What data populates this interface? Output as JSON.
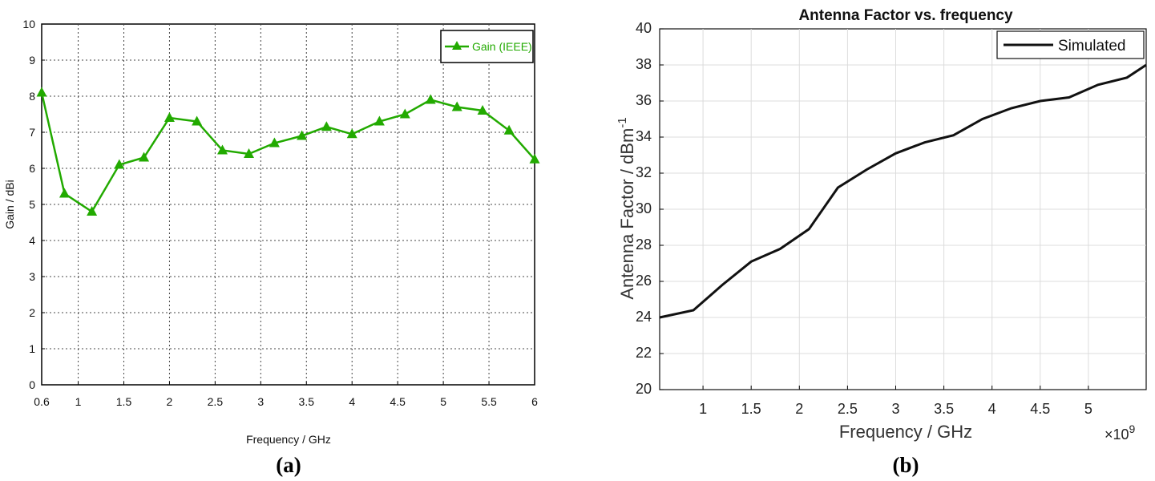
{
  "chart_data": [
    {
      "type": "line",
      "panel_label": "(a)",
      "title": "",
      "xlabel": "Frequency / GHz",
      "ylabel": "Gain / dBi",
      "xlim": [
        0.6,
        6
      ],
      "ylim": [
        0,
        10
      ],
      "xticks": [
        "0.6",
        "1",
        "1.5",
        "2",
        "2.5",
        "3",
        "3.5",
        "4",
        "4.5",
        "5",
        "5.5",
        "6"
      ],
      "xtick_values": [
        0.6,
        1,
        1.5,
        2,
        2.5,
        3,
        3.5,
        4,
        4.5,
        5,
        5.5,
        6
      ],
      "yticks": [
        "0",
        "1",
        "2",
        "3",
        "4",
        "5",
        "6",
        "7",
        "8",
        "9",
        "10"
      ],
      "ytick_values": [
        0,
        1,
        2,
        3,
        4,
        5,
        6,
        7,
        8,
        9,
        10
      ],
      "grid": true,
      "legend_position": "top-right",
      "color": "#22aa00",
      "series": [
        {
          "name": "Gain (IEEE)",
          "marker": "triangle",
          "x": [
            0.6,
            0.85,
            1.15,
            1.45,
            1.72,
            2.0,
            2.3,
            2.58,
            2.87,
            3.15,
            3.45,
            3.72,
            4.0,
            4.3,
            4.58,
            4.86,
            5.15,
            5.43,
            5.72,
            6.0
          ],
          "y": [
            8.1,
            5.3,
            4.8,
            6.1,
            6.3,
            7.4,
            7.3,
            6.5,
            6.4,
            6.7,
            6.9,
            7.15,
            6.95,
            7.3,
            7.5,
            7.9,
            7.7,
            7.6,
            7.05,
            6.25
          ]
        }
      ]
    },
    {
      "type": "line",
      "panel_label": "(b)",
      "title": "Antenna Factor vs. frequency",
      "xlabel": "Frequency / GHz",
      "ylabel": "Antenna Factor / dBm",
      "ylabel_superscript": "-1",
      "x_multiplier": "×10",
      "x_multiplier_exponent": "9",
      "xlim": [
        0.55,
        5.6
      ],
      "ylim": [
        20,
        40
      ],
      "xticks": [
        "1",
        "1.5",
        "2",
        "2.5",
        "3",
        "3.5",
        "4",
        "4.5",
        "5"
      ],
      "xtick_values": [
        1,
        1.5,
        2,
        2.5,
        3,
        3.5,
        4,
        4.5,
        5
      ],
      "yticks": [
        "20",
        "22",
        "24",
        "26",
        "28",
        "30",
        "32",
        "34",
        "36",
        "38",
        "40"
      ],
      "ytick_values": [
        20,
        22,
        24,
        26,
        28,
        30,
        32,
        34,
        36,
        38,
        40
      ],
      "grid": true,
      "legend_position": "top-right",
      "color": "#111111",
      "series": [
        {
          "name": "Simulated",
          "x": [
            0.55,
            0.9,
            1.2,
            1.5,
            1.8,
            2.1,
            2.4,
            2.7,
            3.0,
            3.3,
            3.6,
            3.9,
            4.2,
            4.5,
            4.8,
            5.1,
            5.4,
            5.6
          ],
          "y": [
            24.0,
            24.4,
            25.8,
            27.1,
            27.8,
            28.9,
            31.2,
            32.2,
            33.1,
            33.7,
            34.1,
            35.0,
            35.6,
            36.0,
            36.2,
            36.9,
            37.3,
            38.0
          ]
        }
      ]
    }
  ]
}
